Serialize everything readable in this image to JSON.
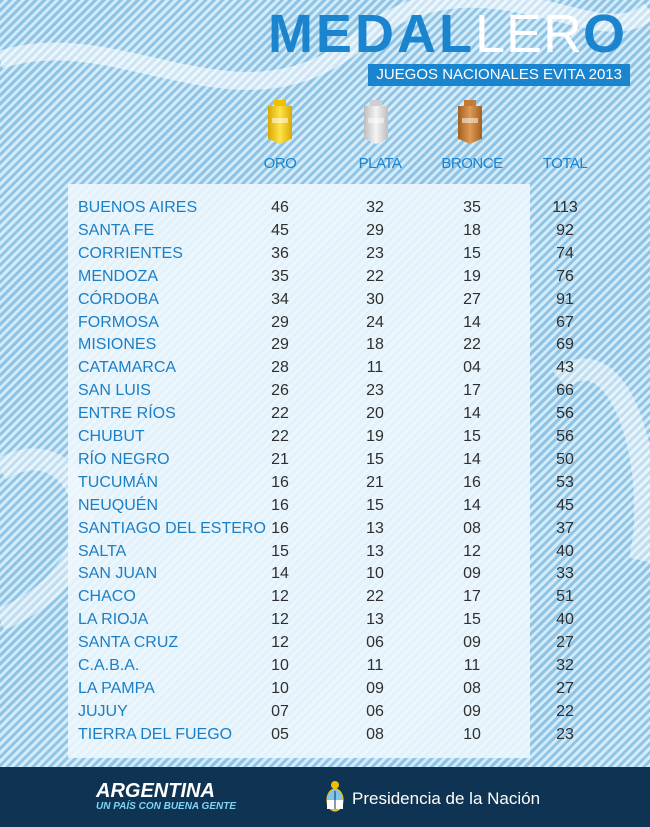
{
  "header": {
    "title_bold_1": "MEDAL",
    "title_thin": "LER",
    "title_bold_2": "O",
    "subtitle": "JUEGOS NACIONALES EVITA 2013"
  },
  "colors": {
    "accent": "#1b84cf",
    "gold": "#f0c000",
    "silver": "#d8d8d8",
    "bronze": "#c47a32",
    "footer": "#0f3453"
  },
  "chart_data": {
    "type": "table",
    "columns": [
      "ORO",
      "PLATA",
      "BRONCE",
      "TOTAL"
    ],
    "rows": [
      {
        "province": "BUENOS AIRES",
        "oro": "46",
        "plata": "32",
        "bronce": "35",
        "total": "113"
      },
      {
        "province": "SANTA FE",
        "oro": "45",
        "plata": "29",
        "bronce": "18",
        "total": "92"
      },
      {
        "province": "CORRIENTES",
        "oro": "36",
        "plata": "23",
        "bronce": "15",
        "total": "74"
      },
      {
        "province": "MENDOZA",
        "oro": "35",
        "plata": "22",
        "bronce": "19",
        "total": "76"
      },
      {
        "province": "CÓRDOBA",
        "oro": "34",
        "plata": "30",
        "bronce": "27",
        "total": "91"
      },
      {
        "province": "FORMOSA",
        "oro": "29",
        "plata": "24",
        "bronce": "14",
        "total": "67"
      },
      {
        "province": "MISIONES",
        "oro": "29",
        "plata": "18",
        "bronce": "22",
        "total": "69"
      },
      {
        "province": "CATAMARCA",
        "oro": "28",
        "plata": "11",
        "bronce": "04",
        "total": "43"
      },
      {
        "province": "SAN LUIS",
        "oro": "26",
        "plata": "23",
        "bronce": "17",
        "total": "66"
      },
      {
        "province": "ENTRE RÍOS",
        "oro": "22",
        "plata": "20",
        "bronce": "14",
        "total": "56"
      },
      {
        "province": "CHUBUT",
        "oro": "22",
        "plata": "19",
        "bronce": "15",
        "total": "56"
      },
      {
        "province": "RÍO NEGRO",
        "oro": "21",
        "plata": "15",
        "bronce": "14",
        "total": "50"
      },
      {
        "province": "TUCUMÁN",
        "oro": "16",
        "plata": "21",
        "bronce": "16",
        "total": "53"
      },
      {
        "province": "NEUQUÉN",
        "oro": "16",
        "plata": "15",
        "bronce": "14",
        "total": "45"
      },
      {
        "province": "SANTIAGO DEL ESTERO",
        "oro": "16",
        "plata": "13",
        "bronce": "08",
        "total": "37"
      },
      {
        "province": "SALTA",
        "oro": "15",
        "plata": "13",
        "bronce": "12",
        "total": "40"
      },
      {
        "province": "SAN JUAN",
        "oro": "14",
        "plata": "10",
        "bronce": "09",
        "total": "33"
      },
      {
        "province": "CHACO",
        "oro": "12",
        "plata": "22",
        "bronce": "17",
        "total": "51"
      },
      {
        "province": "LA RIOJA",
        "oro": "12",
        "plata": "13",
        "bronce": "15",
        "total": "40"
      },
      {
        "province": "SANTA CRUZ",
        "oro": "12",
        "plata": "06",
        "bronce": "09",
        "total": "27"
      },
      {
        "province": "C.A.B.A.",
        "oro": "10",
        "plata": "11",
        "bronce": "11",
        "total": "32"
      },
      {
        "province": "LA PAMPA",
        "oro": "10",
        "plata": "09",
        "bronce": "08",
        "total": "27"
      },
      {
        "province": "JUJUY",
        "oro": "07",
        "plata": "06",
        "bronce": "09",
        "total": "22"
      },
      {
        "province": "TIERRA DEL FUEGO",
        "oro": "05",
        "plata": "08",
        "bronce": "10",
        "total": "23"
      }
    ]
  },
  "footer": {
    "brand_name": "ARGENTINA",
    "brand_tagline": "UN PAÍS CON BUENA GENTE",
    "crest_icon": "argentina-coat-of-arms-icon",
    "presidencia": "Presidencia de la Nación"
  }
}
